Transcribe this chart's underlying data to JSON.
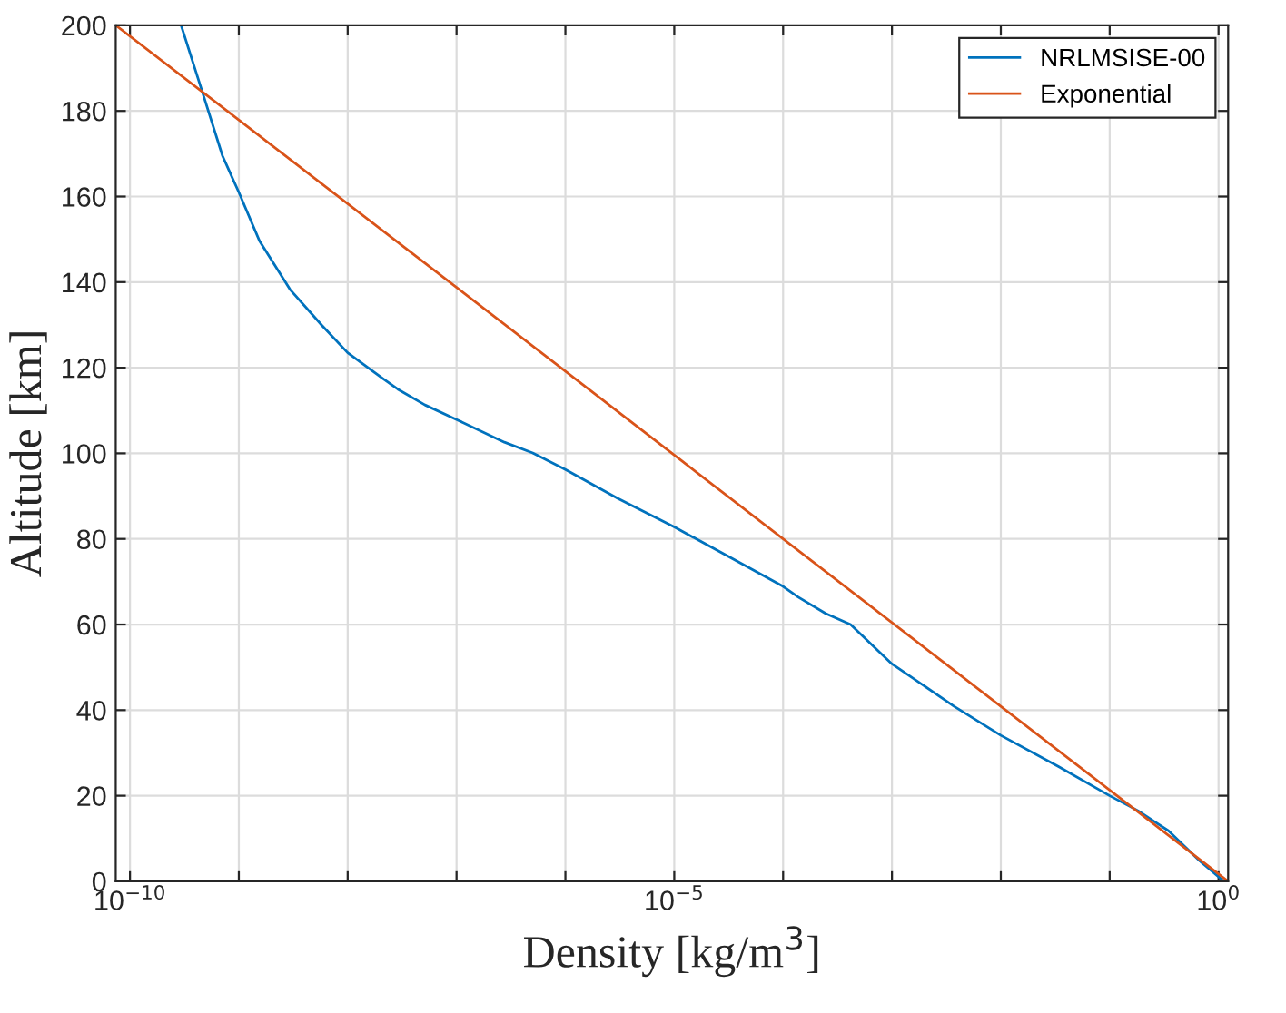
{
  "chart_data": {
    "type": "line",
    "xlabel": "Density [kg/m$^{3}$]",
    "ylabel": "Altitude [km]",
    "log": "x",
    "xlim": [
      7.4e-11,
      1.225
    ],
    "ylim": [
      0,
      200
    ],
    "xticks": [
      {
        "value": 1e-10,
        "label": "10$^{−10}$"
      },
      {
        "value": 1e-09,
        "label": null
      },
      {
        "value": 1e-08,
        "label": null
      },
      {
        "value": 1e-07,
        "label": null
      },
      {
        "value": 1e-06,
        "label": null
      },
      {
        "value": 1e-05,
        "label": "10$^{−5}$"
      },
      {
        "value": 0.0001,
        "label": null
      },
      {
        "value": 0.001,
        "label": null
      },
      {
        "value": 0.01,
        "label": null
      },
      {
        "value": 0.1,
        "label": null
      },
      {
        "value": 1,
        "label": "10$^{0}$"
      }
    ],
    "yticks": [
      0,
      20,
      40,
      60,
      80,
      100,
      120,
      140,
      160,
      180,
      200
    ],
    "grid": true,
    "legend": "top right",
    "marker": "none",
    "line_style": "solid",
    "series": [
      {
        "name": "NRLMSISE-00",
        "color": "#0072bd",
        "x": [
          2.95e-10,
          4.68e-10,
          7.08e-10,
          1e-09,
          1.55e-09,
          2.95e-09,
          5.75e-09,
          1e-08,
          2.04e-08,
          2.88e-08,
          5.13e-08,
          1e-07,
          2.75e-07,
          5.01e-07,
          1e-06,
          3.02e-06,
          1e-05,
          3.09e-05,
          0.0001,
          0.000138,
          0.000245,
          0.000417,
          0.001,
          0.00372,
          0.01,
          0.0339,
          0.1,
          0.182,
          0.347,
          0.676,
          1.12
        ],
        "values": [
          200,
          184,
          169.5,
          161,
          149.6,
          138.3,
          130,
          123.5,
          117.7,
          115,
          111.3,
          107.9,
          102.6,
          100.1,
          96.2,
          89.5,
          82.8,
          76.0,
          68.9,
          66.4,
          62.6,
          60,
          50.8,
          40.9,
          34.1,
          26.8,
          20,
          16.5,
          11.8,
          4.7,
          0
        ]
      },
      {
        "name": "Exponential",
        "color": "#d95319",
        "x": [
          1.225,
          0.00342,
          9.53e-06,
          2.66e-08,
          7.4e-11
        ],
        "values": [
          0,
          50,
          100,
          150,
          200
        ]
      }
    ]
  }
}
